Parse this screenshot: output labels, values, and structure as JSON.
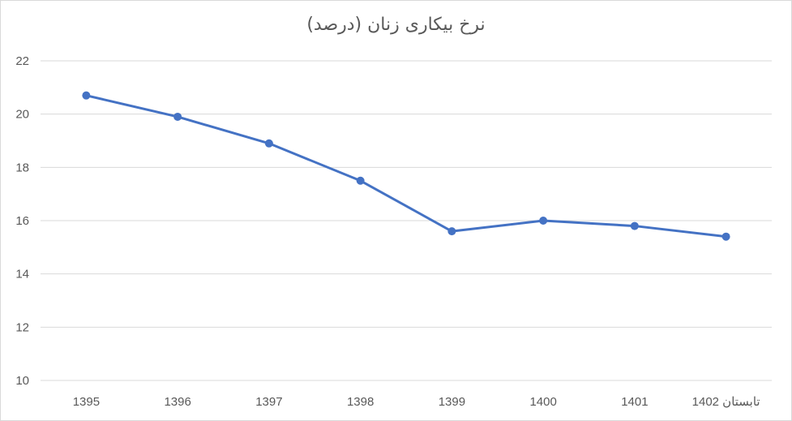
{
  "chart_data": {
    "type": "line",
    "title": "نرخ بیکاری زنان (درصد)",
    "categories": [
      "1395",
      "1396",
      "1397",
      "1398",
      "1399",
      "1400",
      "1401",
      "تابستان 1402"
    ],
    "series": [
      {
        "values": [
          20.7,
          19.9,
          18.9,
          17.5,
          15.6,
          16.0,
          15.8,
          15.4
        ]
      }
    ],
    "ylim": [
      10,
      22
    ],
    "yticks": [
      "10",
      "12",
      "14",
      "16",
      "18",
      "20",
      "22"
    ],
    "grid": true,
    "colors": {
      "line": "#4472c4",
      "grid": "#d9d9d9",
      "text": "#595959"
    }
  }
}
